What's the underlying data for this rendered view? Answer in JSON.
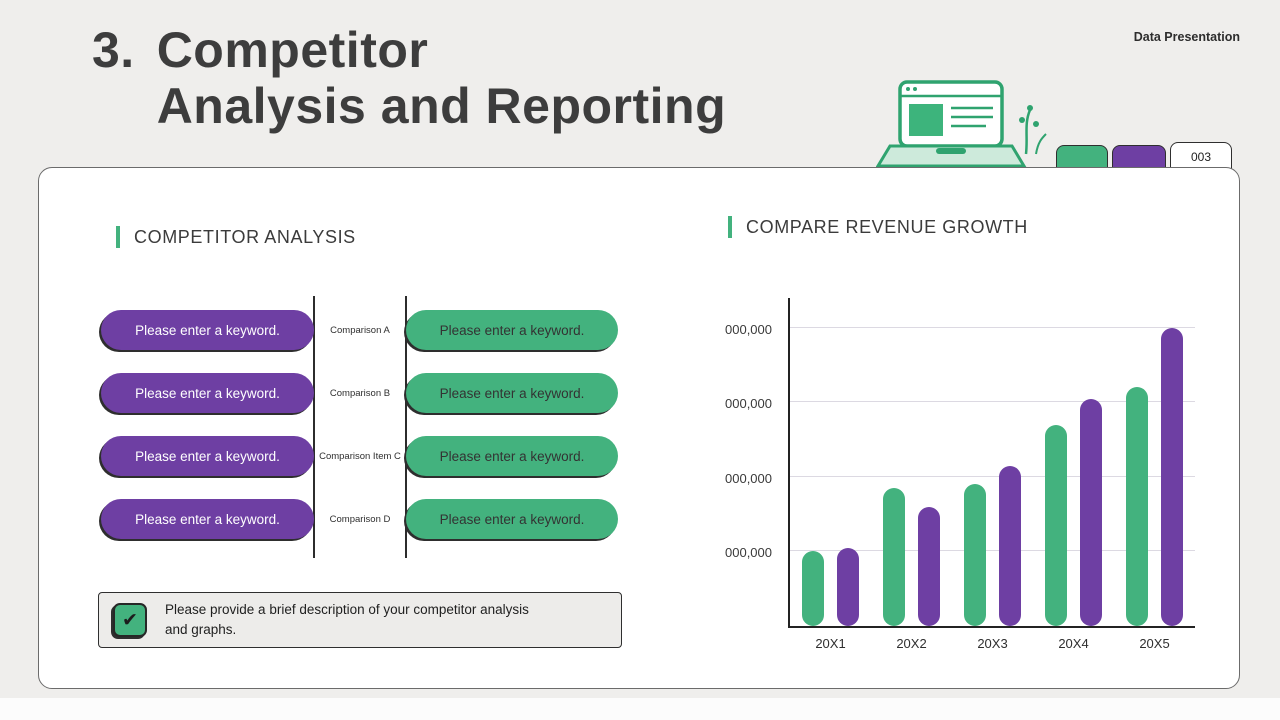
{
  "slide": {
    "background": "#efeeec",
    "eyebrow": "Data Presentation",
    "title_number": "3.",
    "title_line1": "Competitor",
    "title_line2": "Analysis and Reporting",
    "page_tab_label": "003"
  },
  "colors": {
    "green": "#43b27e",
    "purple": "#6e3fa3",
    "dark_text": "#3b3b3b",
    "card_background": "#ffffff",
    "slide_background": "#efeeec"
  },
  "competitor_analysis": {
    "heading": "COMPETITOR ANALYSIS",
    "rows": [
      {
        "left_keyword": "Please enter a keyword.",
        "label": "Comparison A",
        "right_keyword": "Please enter a keyword."
      },
      {
        "left_keyword": "Please enter a keyword.",
        "label": "Comparison B",
        "right_keyword": "Please enter a keyword."
      },
      {
        "left_keyword": "Please enter a keyword.",
        "label": "Comparison Item C",
        "right_keyword": "Please enter a keyword."
      },
      {
        "left_keyword": "Please enter a keyword.",
        "label": "Comparison D",
        "right_keyword": "Please enter a keyword."
      }
    ],
    "note_text": "Please provide a brief description of your competitor analysis and graphs.",
    "checkbox_glyph": "✔"
  },
  "revenue_growth": {
    "heading": "COMPARE REVENUE GROWTH"
  },
  "chart_data": {
    "type": "bar",
    "title": "COMPARE REVENUE GROWTH",
    "categories": [
      "20X1",
      "20X2",
      "20X3",
      "20X4",
      "20X5"
    ],
    "series": [
      {
        "name": "green-series",
        "color": "#43b27e",
        "values": [
          1.0,
          1.85,
          1.9,
          2.7,
          3.2
        ]
      },
      {
        "name": "purple-series",
        "color": "#6e3fa3",
        "values": [
          1.05,
          1.6,
          2.15,
          3.05,
          4.0
        ]
      }
    ],
    "y_ticks": [
      1,
      2,
      3,
      4
    ],
    "y_tick_labels": [
      "000,000",
      "000,000",
      "000,000",
      "000,000"
    ],
    "ylim": [
      0,
      4.4
    ],
    "xlabel": "",
    "ylabel": "",
    "grid": true,
    "legend": false
  }
}
